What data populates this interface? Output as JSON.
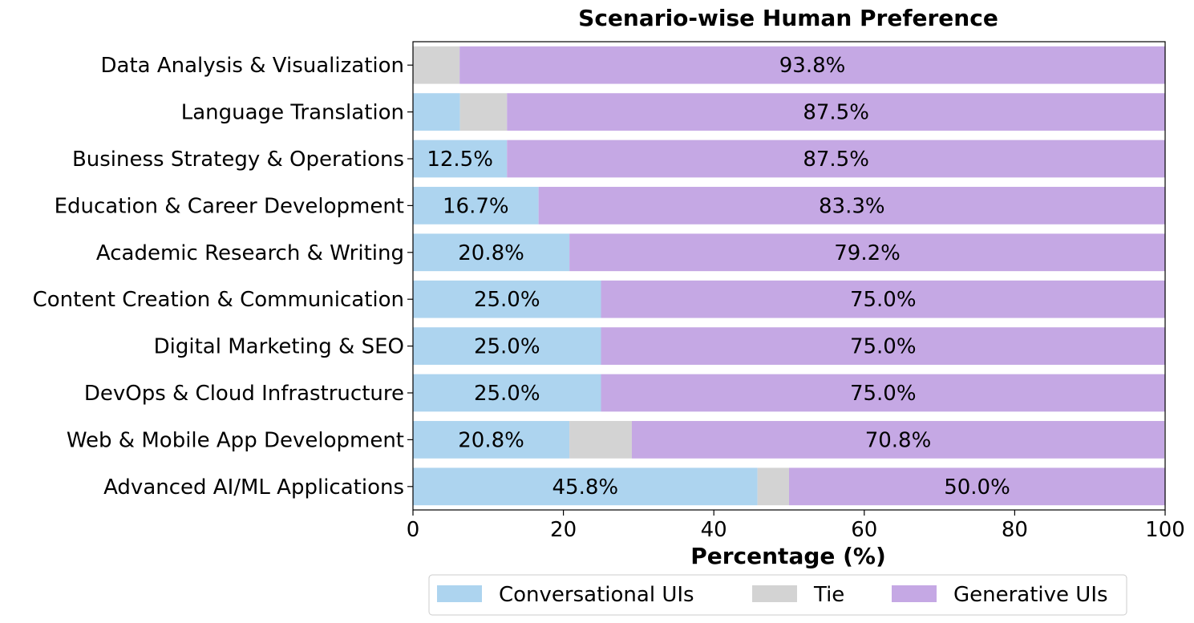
{
  "chart_data": {
    "type": "bar",
    "orientation": "horizontal",
    "stacked": true,
    "title": "Scenario-wise Human Preference",
    "xlabel": "Percentage (%)",
    "ylabel": "",
    "xlim": [
      0,
      100
    ],
    "xticks": [
      0,
      20,
      40,
      60,
      80,
      100
    ],
    "grid": false,
    "legend_position": "bottom-center",
    "categories": [
      "Data Analysis & Visualization",
      "Language Translation",
      "Business Strategy & Operations",
      "Education & Career Development",
      "Academic Research & Writing",
      "Content Creation & Communication",
      "Digital Marketing & SEO",
      "DevOps & Cloud Infrastructure",
      "Web & Mobile App Development",
      "Advanced AI/ML Applications"
    ],
    "series": [
      {
        "name": "Conversational UIs",
        "color": "#add4ef",
        "values": [
          0.0,
          6.25,
          12.5,
          16.7,
          20.8,
          25.0,
          25.0,
          25.0,
          20.8,
          45.8
        ]
      },
      {
        "name": "Tie",
        "color": "#d3d3d3",
        "values": [
          6.2,
          6.25,
          0.0,
          0.0,
          0.0,
          0.0,
          0.0,
          0.0,
          8.3,
          4.2
        ]
      },
      {
        "name": "Generative UIs",
        "color": "#c5a8e4",
        "values": [
          93.8,
          87.5,
          87.5,
          83.3,
          79.2,
          75.0,
          75.0,
          75.0,
          70.8,
          50.0
        ]
      }
    ],
    "data_labels": {
      "Conversational UIs": [
        "",
        "",
        "12.5%",
        "16.7%",
        "20.8%",
        "25.0%",
        "25.0%",
        "25.0%",
        "20.8%",
        "45.8%"
      ],
      "Tie": [
        "",
        "",
        "",
        "",
        "",
        "",
        "",
        "",
        "",
        ""
      ],
      "Generative UIs": [
        "93.8%",
        "87.5%",
        "87.5%",
        "83.3%",
        "79.2%",
        "75.0%",
        "75.0%",
        "75.0%",
        "70.8%",
        "50.0%"
      ]
    }
  }
}
